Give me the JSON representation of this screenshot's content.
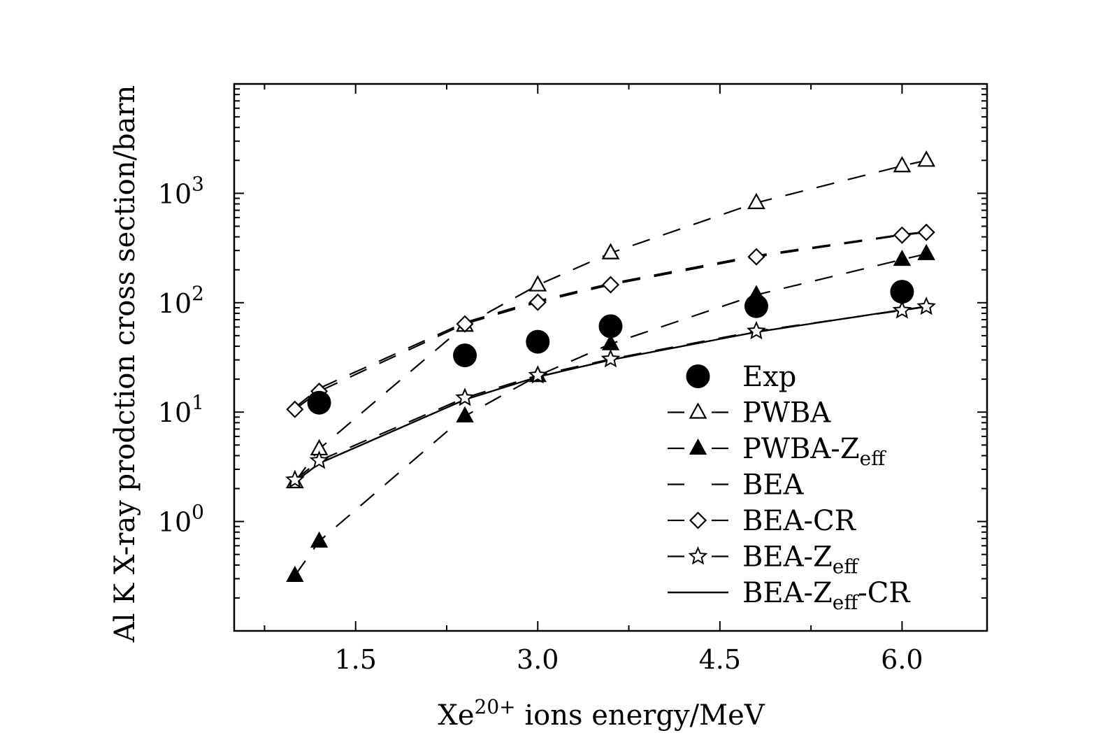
{
  "chart_data": {
    "type": "scatter",
    "title": "",
    "xlabel": {
      "base": "Xe",
      "sup": "20+",
      "rest": " ions energy/MeV"
    },
    "ylabel": "Al K X-ray prodction cross section/barn",
    "xlim": [
      0.5,
      6.7
    ],
    "ylim": [
      0.1,
      10000
    ],
    "yscale": "log",
    "xticks": [
      {
        "value": 1.5,
        "label": "1.5"
      },
      {
        "value": 3.0,
        "label": "3.0"
      },
      {
        "value": 4.5,
        "label": "4.5"
      },
      {
        "value": 6.0,
        "label": "6.0"
      }
    ],
    "yticks": [
      {
        "value": 1,
        "base": "10",
        "sup": "0"
      },
      {
        "value": 10,
        "base": "10",
        "sup": "1"
      },
      {
        "value": 100,
        "base": "10",
        "sup": "2"
      },
      {
        "value": 1000,
        "base": "10",
        "sup": "3"
      }
    ],
    "legend_position": "lower-right",
    "series": [
      {
        "name": "Exp",
        "sub": "",
        "suffix": "",
        "marker": "circle-filled",
        "line": "none",
        "x": [
          1.2,
          2.4,
          3.0,
          3.6,
          4.8,
          6.0
        ],
        "y": [
          12.2,
          33,
          44,
          61,
          93,
          126
        ]
      },
      {
        "name": "PWBA",
        "sub": "",
        "suffix": "",
        "marker": "triangle-open",
        "line": "dashed",
        "x": [
          1.0,
          1.2,
          2.4,
          3.0,
          3.6,
          4.8,
          6.0,
          6.2
        ],
        "y": [
          2.3,
          4.6,
          62,
          145,
          285,
          820,
          1780,
          2000
        ]
      },
      {
        "name": "PWBA-Z",
        "sub": "eff",
        "suffix": "",
        "marker": "triangle-filled",
        "line": "dashed",
        "x": [
          1.0,
          1.2,
          2.4,
          3.0,
          3.6,
          4.8,
          6.0,
          6.2
        ],
        "y": [
          0.32,
          0.66,
          9.2,
          21.5,
          42,
          118,
          248,
          280
        ]
      },
      {
        "name": "BEA",
        "sub": "",
        "suffix": "",
        "marker": "none",
        "line": "dashed",
        "x": [
          1.0,
          1.2,
          2.4,
          3.0,
          3.6,
          4.8,
          6.0,
          6.2
        ],
        "y": [
          11,
          16.5,
          66,
          104,
          150,
          270,
          420,
          445
        ]
      },
      {
        "name": "BEA-CR",
        "sub": "",
        "suffix": "",
        "marker": "diamond-open",
        "line": "dashed",
        "x": [
          1.0,
          1.2,
          2.4,
          3.0,
          3.6,
          4.8,
          6.0,
          6.2
        ],
        "y": [
          10.6,
          15.5,
          64,
          101,
          146,
          263,
          415,
          440
        ]
      },
      {
        "name": "BEA-Z",
        "sub": "eff",
        "suffix": "",
        "marker": "star-open",
        "line": "dashed",
        "x": [
          1.0,
          1.2,
          2.4,
          3.0,
          3.6,
          4.8,
          6.0,
          6.2
        ],
        "y": [
          2.4,
          3.6,
          13.5,
          21.7,
          30.5,
          55,
          85,
          92
        ]
      },
      {
        "name": "BEA-Z",
        "sub": "eff",
        "suffix": "-CR",
        "marker": "none",
        "line": "solid",
        "x": [
          1.0,
          1.2,
          2.4,
          3.0,
          3.6,
          4.8,
          6.0,
          6.2
        ],
        "y": [
          2.3,
          3.4,
          13.0,
          21.0,
          30.0,
          54,
          86,
          92
        ]
      }
    ]
  }
}
